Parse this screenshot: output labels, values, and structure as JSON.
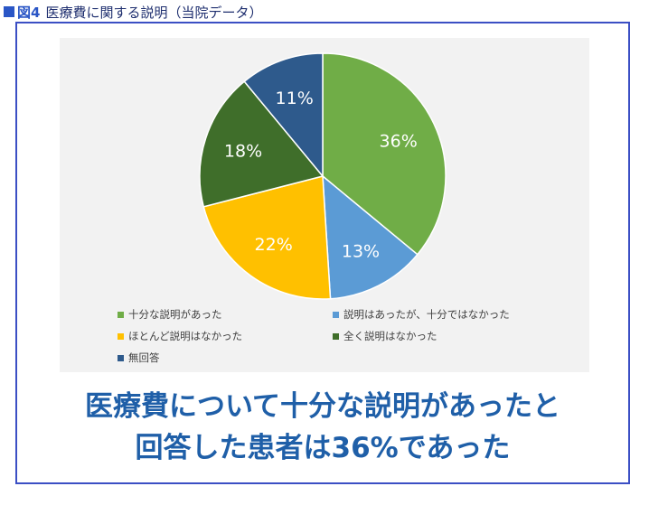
{
  "header": {
    "figure_label": "図4",
    "title": "医療費に関する説明（当院データ）"
  },
  "colors": {
    "accent": "#2a56c6",
    "frame": "#3b4fc4",
    "conclusion_text": "#1f5fa8",
    "chart_background": "#f2f2f2"
  },
  "chart_data": {
    "type": "pie",
    "title": "",
    "legend_position": "bottom",
    "categories": [
      "十分な説明があった",
      "説明はあったが、十分ではなかった",
      "ほとんど説明はなかった",
      "全く説明はなかった",
      "無回答"
    ],
    "values": [
      36,
      13,
      22,
      18,
      11
    ],
    "labels": [
      "36%",
      "13%",
      "22%",
      "18%",
      "11%"
    ],
    "colors": [
      "#70ad47",
      "#5b9bd5",
      "#ffc000",
      "#3f6e2a",
      "#2e5a8c"
    ]
  },
  "conclusion": {
    "line1": "医療費について十分な説明があったと",
    "line2": "回答した患者は36%であった"
  }
}
